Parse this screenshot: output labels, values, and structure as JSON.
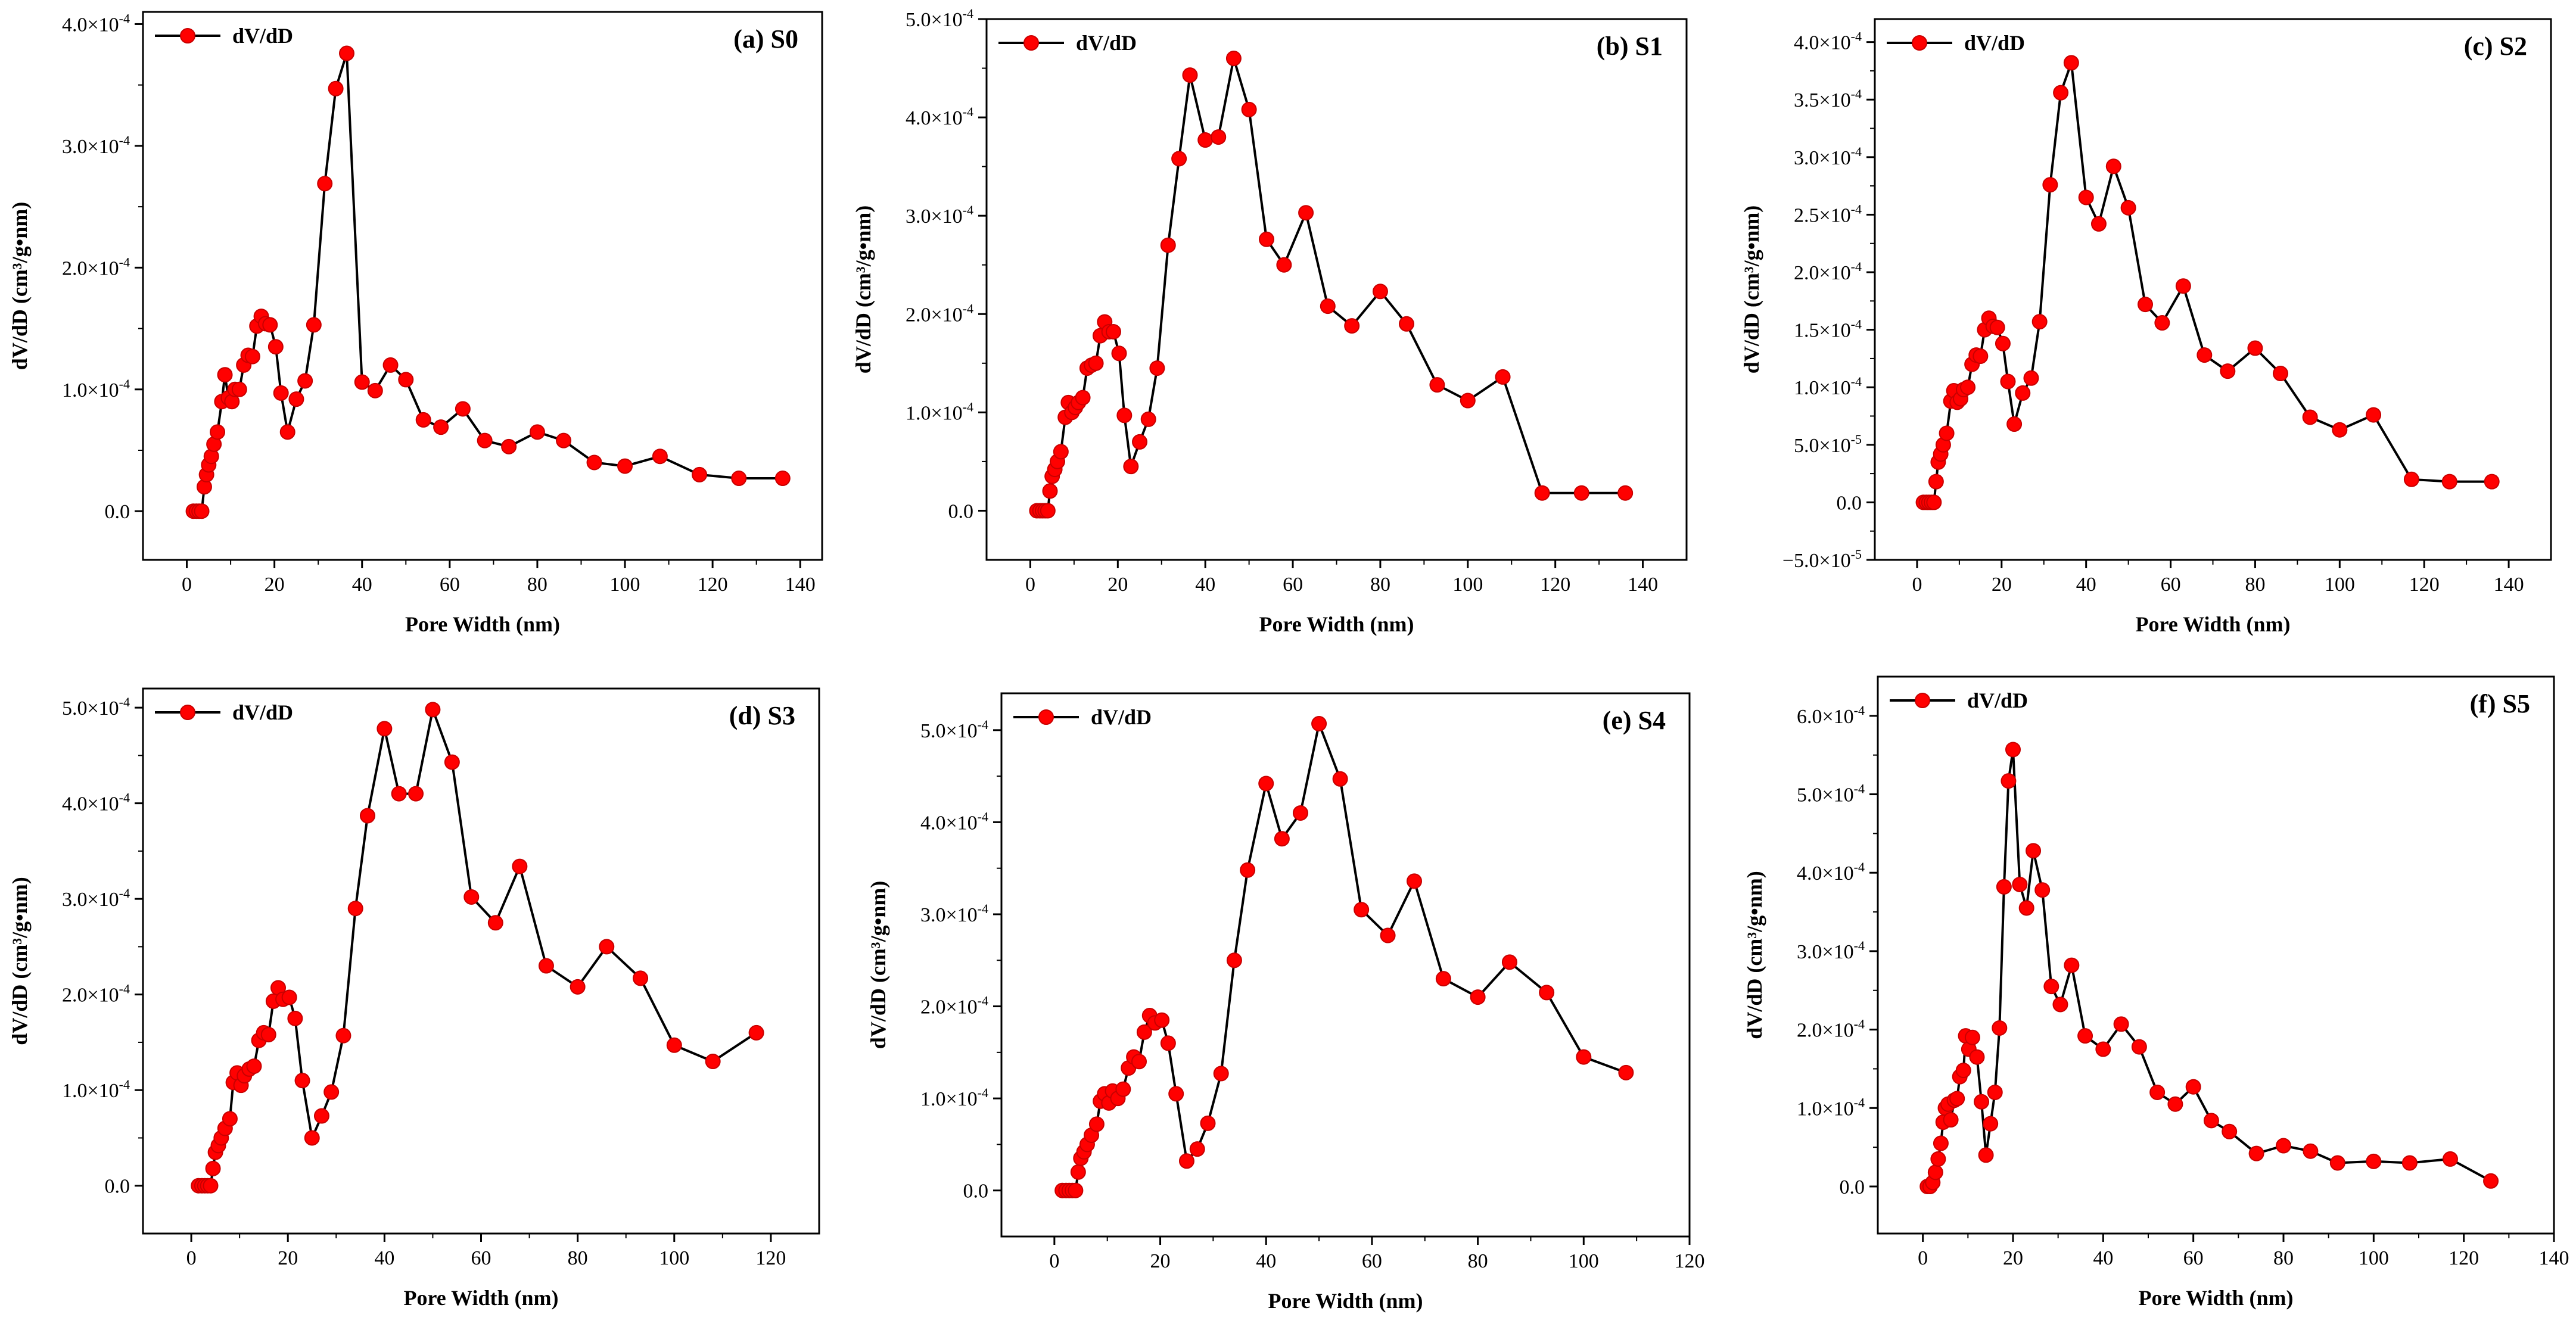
{
  "figure": {
    "line_color": "#000000",
    "marker_color": "#ff0000",
    "marker_edge": "#c80000",
    "legend_label": "dV/dD"
  },
  "chart_data": [
    {
      "type": "line",
      "title": "(a) S0",
      "xlabel": "Pore Width (nm)",
      "ylabel": "dV/dD (cm³/g•nm)",
      "xlim": [
        -10,
        145
      ],
      "ylim": [
        -0.4,
        4.1
      ],
      "xticks": [
        0,
        20,
        40,
        60,
        80,
        100,
        120,
        140
      ],
      "yticks": [
        0,
        1,
        2,
        3,
        4
      ],
      "ytick_labels": [
        {
          "mant": "0.0",
          "exp": ""
        },
        {
          "mant": "1.0×10",
          "exp": "-4"
        },
        {
          "mant": "2.0×10",
          "exp": "-4"
        },
        {
          "mant": "3.0×10",
          "exp": "-4"
        },
        {
          "mant": "4.0×10",
          "exp": "-4"
        }
      ],
      "y_scale_note": "values in units of 1e-4",
      "series": [
        {
          "name": "dV/dD",
          "x": [
            1.5,
            2.2,
            2.8,
            3.4,
            4,
            4.5,
            5,
            5.6,
            6.2,
            7,
            8,
            8.7,
            9.5,
            10.3,
            11,
            12,
            13,
            14,
            15,
            16,
            17,
            18,
            19,
            20.3,
            21.5,
            23,
            25,
            27,
            29,
            31.5,
            34,
            36.5,
            40,
            43,
            46.5,
            50,
            54,
            58,
            63,
            68,
            73.5,
            80,
            86,
            93,
            100,
            108,
            117,
            126,
            136
          ],
          "y": [
            0,
            0,
            0,
            0,
            0.2,
            0.3,
            0.38,
            0.45,
            0.55,
            0.65,
            0.9,
            1.12,
            0.93,
            0.9,
            1.0,
            1.0,
            1.2,
            1.28,
            1.27,
            1.52,
            1.6,
            1.54,
            1.53,
            1.35,
            0.97,
            0.65,
            0.92,
            1.07,
            1.53,
            2.69,
            3.47,
            3.76,
            1.06,
            0.99,
            1.2,
            1.08,
            0.75,
            0.69,
            0.84,
            0.58,
            0.53,
            0.65,
            0.58,
            0.4,
            0.37,
            0.45,
            0.3,
            0.27,
            0.27
          ]
        }
      ]
    },
    {
      "type": "line",
      "title": "(b) S1",
      "xlabel": "Pore Width (nm)",
      "ylabel": "dV/dD (cm³/g•nm)",
      "xlim": [
        -10,
        150
      ],
      "ylim": [
        -0.5,
        5.0
      ],
      "xticks": [
        0,
        20,
        40,
        60,
        80,
        100,
        120,
        140
      ],
      "yticks": [
        0,
        1,
        2,
        3,
        4,
        5
      ],
      "ytick_labels": [
        {
          "mant": "0.0",
          "exp": ""
        },
        {
          "mant": "1.0×10",
          "exp": "-4"
        },
        {
          "mant": "2.0×10",
          "exp": "-4"
        },
        {
          "mant": "3.0×10",
          "exp": "-4"
        },
        {
          "mant": "4.0×10",
          "exp": "-4"
        },
        {
          "mant": "5.0×10",
          "exp": "-4"
        }
      ],
      "y_scale_note": "values in units of 1e-4",
      "series": [
        {
          "name": "dV/dD",
          "x": [
            1.5,
            2.2,
            2.8,
            3.4,
            4,
            4.5,
            5,
            5.6,
            6.2,
            7,
            8,
            8.7,
            9.5,
            10.3,
            11,
            12,
            13,
            14,
            15,
            16,
            17,
            18,
            19,
            20.3,
            21.5,
            23,
            25,
            27,
            29,
            31.5,
            34,
            36.5,
            40,
            43,
            46.5,
            50,
            54,
            58,
            63,
            68,
            73.5,
            80,
            86,
            93,
            100,
            108,
            117,
            126,
            136
          ],
          "y": [
            0,
            0,
            0,
            0,
            0,
            0.2,
            0.35,
            0.42,
            0.5,
            0.6,
            0.95,
            1.1,
            1.0,
            1.05,
            1.1,
            1.15,
            1.45,
            1.48,
            1.5,
            1.78,
            1.92,
            1.82,
            1.82,
            1.6,
            0.97,
            0.45,
            0.7,
            0.93,
            1.45,
            2.7,
            3.58,
            4.43,
            3.77,
            3.8,
            4.6,
            4.08,
            2.76,
            2.5,
            3.03,
            2.08,
            1.88,
            2.23,
            1.9,
            1.28,
            1.12,
            1.36,
            0.18,
            0.18,
            0.18
          ]
        }
      ]
    },
    {
      "type": "line",
      "title": "(c) S2",
      "xlabel": "Pore Width (nm)",
      "ylabel": "dV/dD (cm³/g•nm)",
      "xlim": [
        -10,
        150
      ],
      "ylim": [
        -0.5,
        4.2
      ],
      "xticks": [
        0,
        20,
        40,
        60,
        80,
        100,
        120,
        140
      ],
      "yticks": [
        -0.5,
        0,
        0.5,
        1.0,
        1.5,
        2.0,
        2.5,
        3.0,
        3.5,
        4.0
      ],
      "ytick_labels": [
        {
          "mant": "−5.0×10",
          "exp": "-5"
        },
        {
          "mant": "0.0",
          "exp": ""
        },
        {
          "mant": "5.0×10",
          "exp": "-5"
        },
        {
          "mant": "1.0×10",
          "exp": "-4"
        },
        {
          "mant": "1.5×10",
          "exp": "-4"
        },
        {
          "mant": "2.0×10",
          "exp": "-4"
        },
        {
          "mant": "2.5×10",
          "exp": "-4"
        },
        {
          "mant": "3.0×10",
          "exp": "-4"
        },
        {
          "mant": "3.5×10",
          "exp": "-4"
        },
        {
          "mant": "4.0×10",
          "exp": "-4"
        }
      ],
      "y_scale_note": "values in units of 1e-4",
      "series": [
        {
          "name": "dV/dD",
          "x": [
            1.5,
            2.2,
            2.8,
            3.4,
            4,
            4.5,
            5,
            5.6,
            6.2,
            7,
            8,
            8.7,
            9.5,
            10.3,
            11,
            12,
            13,
            14,
            15,
            16,
            17,
            18,
            19,
            20.3,
            21.5,
            23,
            25,
            27,
            29,
            31.5,
            34,
            36.5,
            40,
            43,
            46.5,
            50,
            54,
            58,
            63,
            68,
            73.5,
            80,
            86,
            93,
            100,
            108,
            117,
            126,
            136
          ],
          "y": [
            0,
            0,
            0,
            0,
            0,
            0.18,
            0.35,
            0.42,
            0.5,
            0.6,
            0.88,
            0.97,
            0.87,
            0.9,
            0.98,
            1.0,
            1.2,
            1.28,
            1.27,
            1.5,
            1.6,
            1.53,
            1.52,
            1.38,
            1.05,
            0.68,
            0.95,
            1.08,
            1.57,
            2.76,
            3.56,
            3.82,
            2.65,
            2.42,
            2.92,
            2.56,
            1.72,
            1.56,
            1.88,
            1.28,
            1.14,
            1.34,
            1.12,
            0.74,
            0.63,
            0.76,
            0.2,
            0.18,
            0.18
          ]
        }
      ]
    },
    {
      "type": "line",
      "title": "(d) S3",
      "xlabel": "Pore Width (nm)",
      "ylabel": "dV/dD (cm³/g•nm)",
      "xlim": [
        -10,
        130
      ],
      "ylim": [
        -0.5,
        5.2
      ],
      "xticks": [
        0,
        20,
        40,
        60,
        80,
        100,
        120
      ],
      "yticks": [
        0,
        1,
        2,
        3,
        4,
        5
      ],
      "ytick_labels": [
        {
          "mant": "0.0",
          "exp": ""
        },
        {
          "mant": "1.0×10",
          "exp": "-4"
        },
        {
          "mant": "2.0×10",
          "exp": "-4"
        },
        {
          "mant": "3.0×10",
          "exp": "-4"
        },
        {
          "mant": "4.0×10",
          "exp": "-4"
        },
        {
          "mant": "5.0×10",
          "exp": "-4"
        }
      ],
      "y_scale_note": "values in units of 1e-4",
      "series": [
        {
          "name": "dV/dD",
          "x": [
            1.5,
            2.2,
            2.8,
            3.4,
            4,
            4.5,
            5,
            5.6,
            6.2,
            7,
            8,
            8.7,
            9.5,
            10.3,
            11,
            12,
            13,
            14,
            15,
            16,
            17,
            18,
            19,
            20.3,
            21.5,
            23,
            25,
            27,
            29,
            31.5,
            34,
            36.5,
            40,
            43,
            46.5,
            50,
            54,
            58,
            63,
            68,
            73.5,
            80,
            86,
            93,
            100,
            108,
            117
          ],
          "y": [
            0,
            0,
            0,
            0,
            0,
            0.18,
            0.35,
            0.42,
            0.5,
            0.6,
            0.7,
            1.08,
            1.18,
            1.05,
            1.15,
            1.22,
            1.25,
            1.52,
            1.6,
            1.58,
            1.93,
            2.07,
            1.95,
            1.97,
            1.75,
            1.1,
            0.5,
            0.73,
            0.98,
            1.57,
            2.9,
            3.87,
            4.78,
            4.1,
            4.1,
            4.98,
            4.43,
            3.02,
            2.75,
            3.34,
            2.3,
            2.08,
            2.5,
            2.17,
            1.47,
            1.3,
            1.6
          ]
        }
      ]
    },
    {
      "type": "line",
      "title": "(e) S4",
      "xlabel": "Pore Width (nm)",
      "ylabel": "dV/dD (cm³/g•nm)",
      "xlim": [
        -10,
        120
      ],
      "ylim": [
        -0.5,
        5.4
      ],
      "xticks": [
        0,
        20,
        40,
        60,
        80,
        100,
        120
      ],
      "yticks": [
        0,
        1,
        2,
        3,
        4,
        5
      ],
      "ytick_labels": [
        {
          "mant": "0.0",
          "exp": ""
        },
        {
          "mant": "1.0×10",
          "exp": "-4"
        },
        {
          "mant": "2.0×10",
          "exp": "-4"
        },
        {
          "mant": "3.0×10",
          "exp": "-4"
        },
        {
          "mant": "4.0×10",
          "exp": "-4"
        },
        {
          "mant": "5.0×10",
          "exp": "-4"
        }
      ],
      "y_scale_note": "values in units of 1e-4",
      "series": [
        {
          "name": "dV/dD",
          "x": [
            1.5,
            2.2,
            2.8,
            3.4,
            4,
            4.5,
            5,
            5.6,
            6.2,
            7,
            8,
            8.7,
            9.5,
            10.3,
            11,
            12,
            13,
            14,
            15,
            16,
            17,
            18,
            19,
            20.3,
            21.5,
            23,
            25,
            27,
            29,
            31.5,
            34,
            36.5,
            40,
            43,
            46.5,
            50,
            54,
            58,
            63,
            68,
            73.5,
            80,
            86,
            93,
            100,
            108
          ],
          "y": [
            0,
            0,
            0,
            0,
            0,
            0.2,
            0.35,
            0.42,
            0.5,
            0.6,
            0.72,
            0.97,
            1.05,
            0.95,
            1.08,
            1.0,
            1.1,
            1.33,
            1.45,
            1.4,
            1.72,
            1.9,
            1.82,
            1.85,
            1.6,
            1.05,
            0.32,
            0.45,
            0.73,
            1.27,
            2.5,
            3.48,
            4.42,
            3.82,
            4.1,
            5.07,
            4.47,
            3.05,
            2.77,
            3.36,
            2.3,
            2.1,
            2.48,
            2.15,
            1.45,
            1.28
          ]
        }
      ]
    },
    {
      "type": "line",
      "title": "(f) S5",
      "xlabel": "Pore Width (nm)",
      "ylabel": "dV/dD (cm³/g•nm)",
      "xlim": [
        -10,
        140
      ],
      "ylim": [
        -0.6,
        6.5
      ],
      "xticks": [
        0,
        20,
        40,
        60,
        80,
        100,
        120,
        140
      ],
      "yticks": [
        0,
        1,
        2,
        3,
        4,
        5,
        6
      ],
      "ytick_labels": [
        {
          "mant": "0.0",
          "exp": ""
        },
        {
          "mant": "1.0×10",
          "exp": "-4"
        },
        {
          "mant": "2.0×10",
          "exp": "-4"
        },
        {
          "mant": "3.0×10",
          "exp": "-4"
        },
        {
          "mant": "4.0×10",
          "exp": "-4"
        },
        {
          "mant": "5.0×10",
          "exp": "-4"
        },
        {
          "mant": "6.0×10",
          "exp": "-4"
        }
      ],
      "y_scale_note": "values in units of 1e-4",
      "series": [
        {
          "name": "dV/dD",
          "x": [
            1,
            1.6,
            2.2,
            2.8,
            3.4,
            4,
            4.5,
            5,
            5.6,
            6.2,
            7,
            7.6,
            8.2,
            9,
            9.5,
            10.2,
            11,
            12,
            13,
            14,
            15,
            16,
            17,
            18,
            19,
            20,
            21.5,
            23,
            24.5,
            26.5,
            28.5,
            30.5,
            33,
            36,
            40,
            44,
            48,
            52,
            56,
            60,
            64,
            68,
            74,
            80,
            86,
            92,
            100,
            108,
            117,
            126
          ],
          "y": [
            0,
            0,
            0.05,
            0.18,
            0.35,
            0.55,
            0.82,
            1.0,
            1.05,
            0.85,
            1.1,
            1.12,
            1.4,
            1.48,
            1.92,
            1.75,
            1.9,
            1.65,
            1.08,
            0.4,
            0.8,
            1.2,
            2.02,
            3.82,
            5.17,
            5.57,
            3.85,
            3.55,
            4.28,
            3.78,
            2.55,
            2.32,
            2.82,
            1.92,
            1.75,
            2.07,
            1.78,
            1.2,
            1.05,
            1.27,
            0.84,
            0.7,
            0.42,
            0.52,
            0.45,
            0.3,
            0.32,
            0.3,
            0.35,
            0.07
          ]
        }
      ]
    }
  ]
}
